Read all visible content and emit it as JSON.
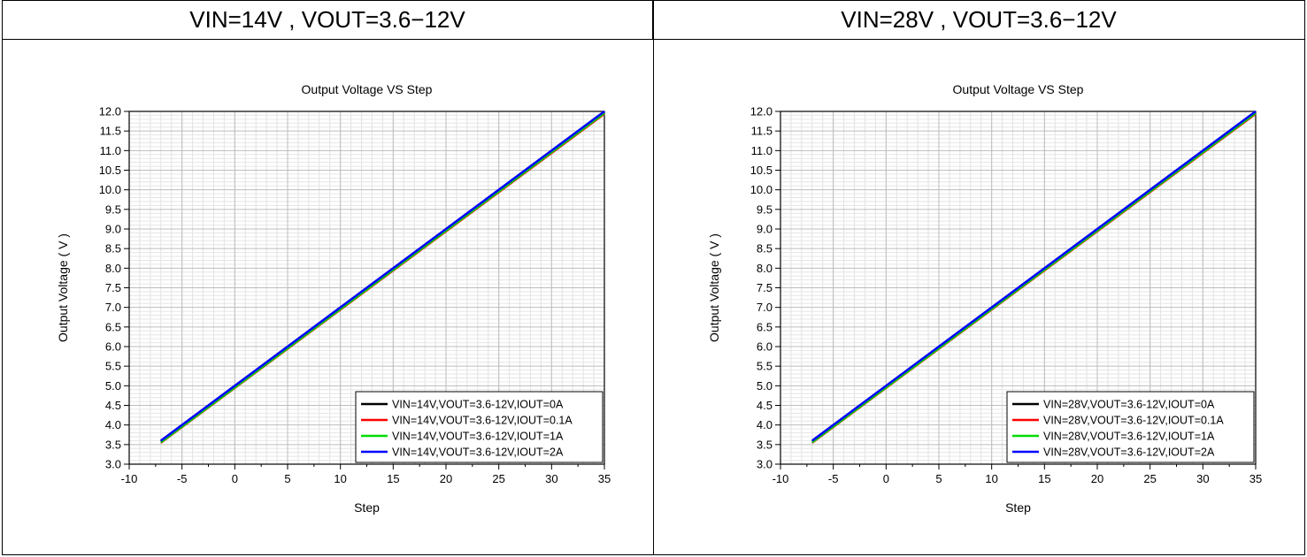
{
  "panels": [
    {
      "header": "VIN=14V , VOUT=3.6−12V",
      "chart_data": {
        "type": "line",
        "title": "Output Voltage VS Step",
        "xlabel": "Step",
        "ylabel": "Output Voltage ( V )",
        "xlim": [
          -10,
          35
        ],
        "ylim": [
          3.0,
          12.0
        ],
        "xticks": [
          -10,
          -5,
          0,
          5,
          10,
          15,
          20,
          25,
          30,
          35
        ],
        "yticks": [
          3.0,
          3.5,
          4.0,
          4.5,
          5.0,
          5.5,
          6.0,
          6.5,
          7.0,
          7.5,
          8.0,
          8.5,
          9.0,
          9.5,
          10.0,
          10.5,
          11.0,
          11.5,
          12.0
        ],
        "grid": true,
        "legend_position": "bottom-right",
        "x": [
          -7,
          35
        ],
        "series": [
          {
            "name": "VIN=14V,VOUT=3.6-12V,IOUT=0A",
            "color": "#000000",
            "values": [
              3.58,
              12.0
            ]
          },
          {
            "name": "VIN=14V,VOUT=3.6-12V,IOUT=0.1A",
            "color": "#ff0000",
            "values": [
              3.54,
              11.93
            ]
          },
          {
            "name": "VIN=14V,VOUT=3.6-12V,IOUT=1A",
            "color": "#00dd00",
            "values": [
              3.55,
              11.95
            ]
          },
          {
            "name": "VIN=14V,VOUT=3.6-12V,IOUT=2A",
            "color": "#0000ff",
            "values": [
              3.6,
              12.0
            ]
          }
        ]
      }
    },
    {
      "header": "VIN=28V , VOUT=3.6−12V",
      "chart_data": {
        "type": "line",
        "title": "Output Voltage VS Step",
        "xlabel": "Step",
        "ylabel": "Output Voltage ( V )",
        "xlim": [
          -10,
          35
        ],
        "ylim": [
          3.0,
          12.0
        ],
        "xticks": [
          -10,
          -5,
          0,
          5,
          10,
          15,
          20,
          25,
          30,
          35
        ],
        "yticks": [
          3.0,
          3.5,
          4.0,
          4.5,
          5.0,
          5.5,
          6.0,
          6.5,
          7.0,
          7.5,
          8.0,
          8.5,
          9.0,
          9.5,
          10.0,
          10.5,
          11.0,
          11.5,
          12.0
        ],
        "grid": true,
        "legend_position": "bottom-right",
        "x": [
          -7,
          35
        ],
        "series": [
          {
            "name": "VIN=28V,VOUT=3.6-12V,IOUT=0A",
            "color": "#000000",
            "values": [
              3.58,
              12.0
            ]
          },
          {
            "name": "VIN=28V,VOUT=3.6-12V,IOUT=0.1A",
            "color": "#ff0000",
            "values": [
              3.54,
              11.93
            ]
          },
          {
            "name": "VIN=28V,VOUT=3.6-12V,IOUT=1A",
            "color": "#00dd00",
            "values": [
              3.55,
              11.95
            ]
          },
          {
            "name": "VIN=28V,VOUT=3.6-12V,IOUT=2A",
            "color": "#0000ff",
            "values": [
              3.6,
              12.0
            ]
          }
        ]
      }
    }
  ]
}
